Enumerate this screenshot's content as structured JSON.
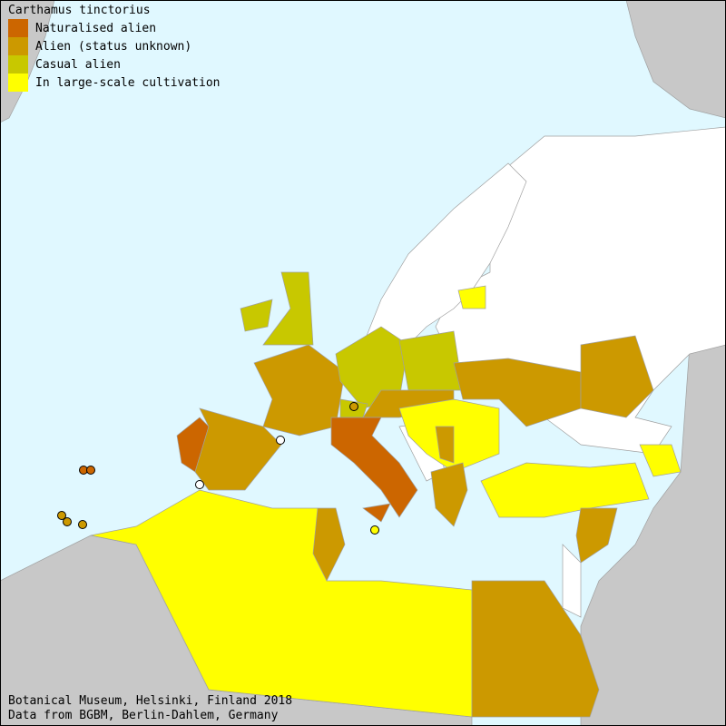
{
  "legend": {
    "title": "Carthamus tinctorius",
    "items": [
      {
        "label": "Naturalised alien",
        "color": "#cc6600"
      },
      {
        "label": "Alien (status unknown)",
        "color": "#cc9900"
      },
      {
        "label": "Casual alien",
        "color": "#c8c800"
      },
      {
        "label": "In large-scale cultivation",
        "color": "#ffff00"
      }
    ]
  },
  "colors": {
    "sea": "#e0f8ff",
    "outside_land": "#c8c8c8",
    "no_record": "#ffffff"
  },
  "footer": {
    "line1": "Botanical Museum, Helsinki, Finland 2018",
    "line2": "Data from BGBM, Berlin-Dahlem, Germany"
  }
}
